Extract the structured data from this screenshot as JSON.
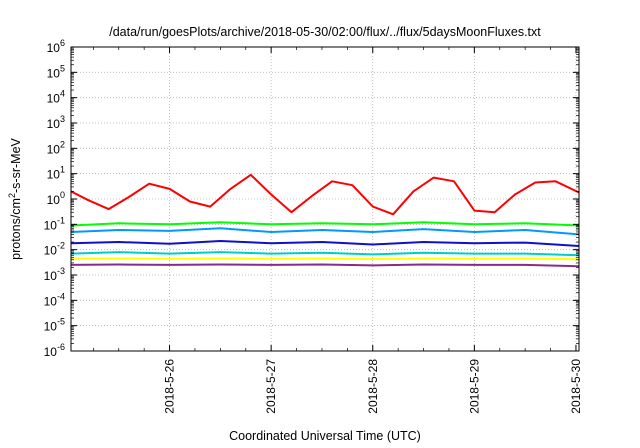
{
  "chart_data": {
    "type": "line",
    "title": "/data/run/goesPlots/archive/2018-05-30/02:00/flux/../flux/5daysMoonFluxes.txt",
    "xlabel": "Coordinated Universal Time (UTC)",
    "ylabel": {
      "prefix": "protons/cm",
      "sup": "2",
      "suffix": "-s-sr-MeV"
    },
    "x_ticks": [
      "2018-5-26",
      "2018-5-27",
      "2018-5-28",
      "2018-5-29",
      "2018-5-30"
    ],
    "y_scale": "log",
    "ylim": [
      1e-06,
      1000000.0
    ],
    "y_tick_exponents": [
      -6,
      -5,
      -4,
      -3,
      -2,
      -1,
      0,
      1,
      2,
      3,
      4,
      5,
      6
    ],
    "y_tick_base": "10",
    "grid": true,
    "legend": "none",
    "xlim_days": [
      -0.97,
      4.03
    ],
    "series": [
      {
        "color": "#ff0000",
        "x": [
          -0.97,
          -0.8,
          -0.6,
          -0.4,
          -0.2,
          0.0,
          0.2,
          0.4,
          0.6,
          0.8,
          1.0,
          1.2,
          1.4,
          1.6,
          1.8,
          2.0,
          2.2,
          2.4,
          2.6,
          2.8,
          3.0,
          3.2,
          3.4,
          3.6,
          3.8,
          4.03
        ],
        "values": [
          2.0,
          0.9,
          0.4,
          1.2,
          4.0,
          2.5,
          0.8,
          0.5,
          2.5,
          9.0,
          1.5,
          0.3,
          1.3,
          5.0,
          3.5,
          0.5,
          0.25,
          2.0,
          7.0,
          5.0,
          0.35,
          0.3,
          1.5,
          4.5,
          5.0,
          1.8
        ]
      },
      {
        "color": "#00ff00",
        "x": [
          -0.97,
          -0.5,
          0.0,
          0.5,
          1.0,
          1.5,
          2.0,
          2.5,
          3.0,
          3.5,
          4.03
        ],
        "values": [
          0.09,
          0.11,
          0.1,
          0.12,
          0.1,
          0.11,
          0.1,
          0.12,
          0.1,
          0.11,
          0.09
        ]
      },
      {
        "color": "#0099ff",
        "x": [
          -0.97,
          -0.5,
          0.0,
          0.5,
          1.0,
          1.5,
          2.0,
          2.5,
          3.0,
          3.5,
          4.03
        ],
        "values": [
          0.05,
          0.06,
          0.055,
          0.07,
          0.05,
          0.06,
          0.05,
          0.065,
          0.05,
          0.06,
          0.04
        ]
      },
      {
        "color": "#1010cc",
        "x": [
          -0.97,
          -0.5,
          0.0,
          0.5,
          1.0,
          1.5,
          2.0,
          2.5,
          3.0,
          3.5,
          4.03
        ],
        "values": [
          0.018,
          0.02,
          0.017,
          0.022,
          0.018,
          0.02,
          0.016,
          0.02,
          0.018,
          0.019,
          0.014
        ]
      },
      {
        "color": "#00cccc",
        "x": [
          -0.97,
          -0.5,
          0.0,
          0.5,
          1.0,
          1.5,
          2.0,
          2.5,
          3.0,
          3.5,
          4.03
        ],
        "values": [
          0.007,
          0.008,
          0.007,
          0.008,
          0.007,
          0.0075,
          0.0065,
          0.0075,
          0.007,
          0.007,
          0.006
        ]
      },
      {
        "color": "#ffff00",
        "x": [
          -0.97,
          -0.5,
          0.0,
          0.5,
          1.0,
          1.5,
          2.0,
          2.5,
          3.0,
          3.5,
          4.03
        ],
        "values": [
          0.0045,
          0.0045,
          0.0044,
          0.0045,
          0.0044,
          0.0045,
          0.0043,
          0.0045,
          0.0044,
          0.0045,
          0.0042
        ]
      },
      {
        "color": "#8b2a8b",
        "x": [
          -0.97,
          -0.5,
          0.0,
          0.5,
          1.0,
          1.5,
          2.0,
          2.5,
          3.0,
          3.5,
          4.03
        ],
        "values": [
          0.0025,
          0.0026,
          0.0025,
          0.0026,
          0.0025,
          0.0026,
          0.0024,
          0.0026,
          0.0025,
          0.0025,
          0.0022
        ]
      }
    ]
  }
}
